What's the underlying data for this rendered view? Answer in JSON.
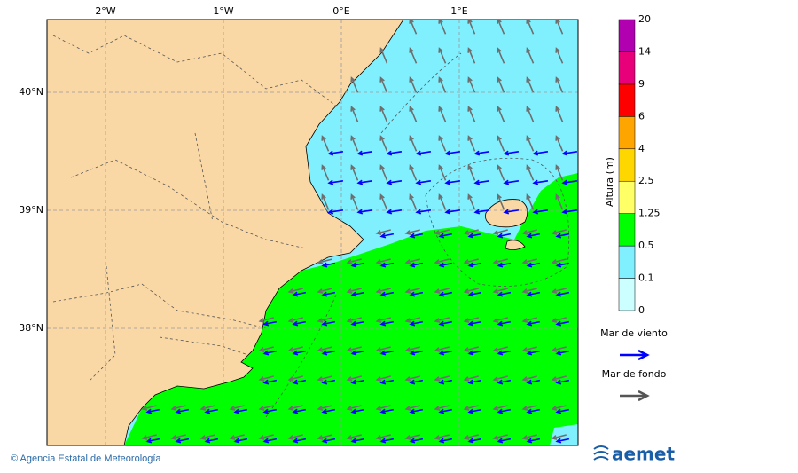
{
  "map": {
    "lon_ticks": [
      "2°W",
      "1°W",
      "0°E",
      "1°E"
    ],
    "lat_ticks": [
      "40°N",
      "39°N",
      "38°N"
    ],
    "colorbar": {
      "title": "Altura (m)",
      "levels": [
        0,
        0.1,
        0.5,
        1.25,
        2.5,
        4,
        6,
        9,
        14,
        20
      ],
      "colors": [
        "#ccffff",
        "#80f0ff",
        "#00ff00",
        "#ffff66",
        "#ffd700",
        "#ffa500",
        "#ff0000",
        "#e8007a",
        "#b000b0"
      ]
    },
    "legend": [
      {
        "label": "Mar de viento",
        "color": "#0000ff"
      },
      {
        "label": "Mar de fondo",
        "color": "#555555"
      }
    ],
    "footer": {
      "credit": "© Agencia Estatal de Meteorología",
      "logo": "aemet"
    }
  }
}
